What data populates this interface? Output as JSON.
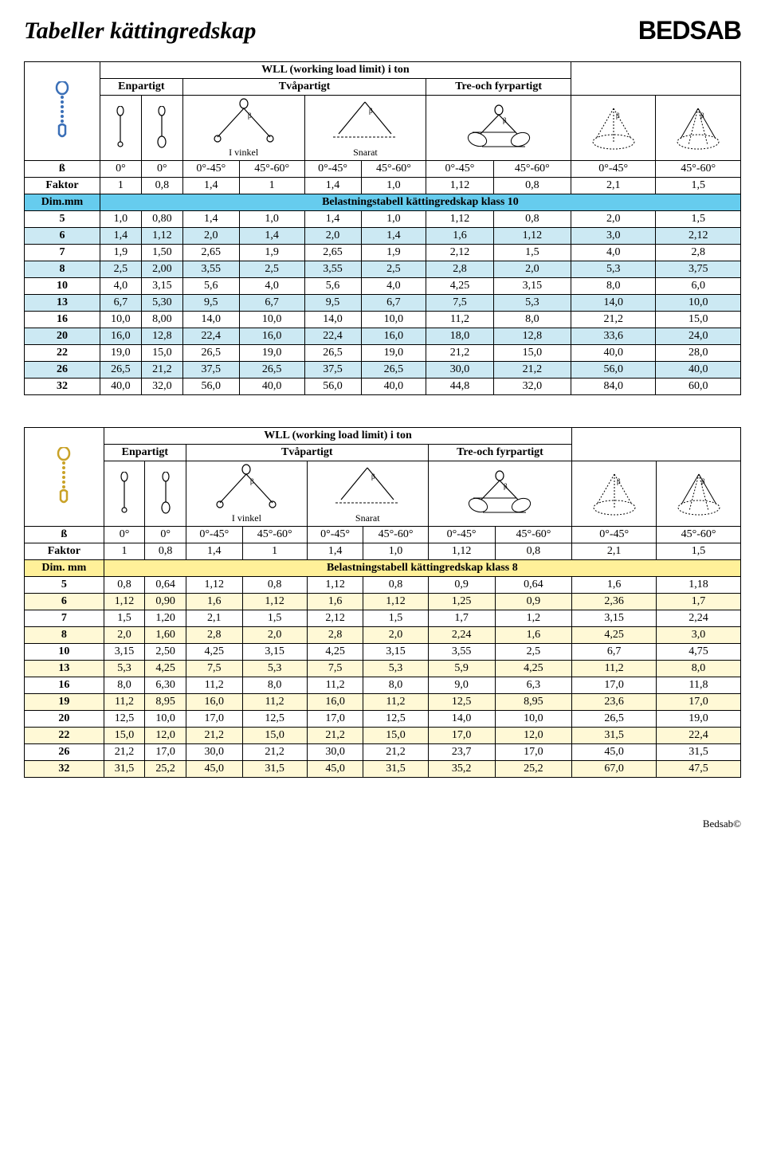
{
  "page": {
    "title": "Tabeller kättingredskap",
    "brand": "BEDSAB",
    "copyright": "Bedsab©"
  },
  "tables": [
    {
      "wll_title": "WLL (working load limit) i ton",
      "part_labels": [
        "Enpartigt",
        "Tvåpartigt",
        "Tre-och fyrpartigt"
      ],
      "ivinkel": "I vinkel",
      "snarat": "Snarat",
      "beta_label": "ß",
      "faktor_label": "Faktor",
      "dim_label": "Dim.mm",
      "belast_label": "Belastningstabell kättingredskap klass 10",
      "angles": [
        "0°",
        "0°",
        "0°-45°",
        "45°-60°",
        "0°-45°",
        "45°-60°",
        "0°-45°",
        "45°-60°",
        "0°-45°",
        "45°-60°"
      ],
      "faktor": [
        "1",
        "0,8",
        "1,4",
        "1",
        "1,4",
        "1,0",
        "1,12",
        "0,8",
        "2,1",
        "1,5"
      ],
      "icon_colors": {
        "chain": "#3a6fb7",
        "link": "#3a6fb7"
      },
      "dim_row_bg": "#66ccee",
      "alt_row_bg": "#cce9f3",
      "rows": [
        {
          "d": "5",
          "v": [
            "1,0",
            "0,80",
            "1,4",
            "1,0",
            "1,4",
            "1,0",
            "1,12",
            "0,8",
            "2,0",
            "1,5"
          ]
        },
        {
          "d": "6",
          "v": [
            "1,4",
            "1,12",
            "2,0",
            "1,4",
            "2,0",
            "1,4",
            "1,6",
            "1,12",
            "3,0",
            "2,12"
          ]
        },
        {
          "d": "7",
          "v": [
            "1,9",
            "1,50",
            "2,65",
            "1,9",
            "2,65",
            "1,9",
            "2,12",
            "1,5",
            "4,0",
            "2,8"
          ]
        },
        {
          "d": "8",
          "v": [
            "2,5",
            "2,00",
            "3,55",
            "2,5",
            "3,55",
            "2,5",
            "2,8",
            "2,0",
            "5,3",
            "3,75"
          ]
        },
        {
          "d": "10",
          "v": [
            "4,0",
            "3,15",
            "5,6",
            "4,0",
            "5,6",
            "4,0",
            "4,25",
            "3,15",
            "8,0",
            "6,0"
          ]
        },
        {
          "d": "13",
          "v": [
            "6,7",
            "5,30",
            "9,5",
            "6,7",
            "9,5",
            "6,7",
            "7,5",
            "5,3",
            "14,0",
            "10,0"
          ]
        },
        {
          "d": "16",
          "v": [
            "10,0",
            "8,00",
            "14,0",
            "10,0",
            "14,0",
            "10,0",
            "11,2",
            "8,0",
            "21,2",
            "15,0"
          ]
        },
        {
          "d": "20",
          "v": [
            "16,0",
            "12,8",
            "22,4",
            "16,0",
            "22,4",
            "16,0",
            "18,0",
            "12,8",
            "33,6",
            "24,0"
          ]
        },
        {
          "d": "22",
          "v": [
            "19,0",
            "15,0",
            "26,5",
            "19,0",
            "26,5",
            "19,0",
            "21,2",
            "15,0",
            "40,0",
            "28,0"
          ]
        },
        {
          "d": "26",
          "v": [
            "26,5",
            "21,2",
            "37,5",
            "26,5",
            "37,5",
            "26,5",
            "30,0",
            "21,2",
            "56,0",
            "40,0"
          ]
        },
        {
          "d": "32",
          "v": [
            "40,0",
            "32,0",
            "56,0",
            "40,0",
            "56,0",
            "40,0",
            "44,8",
            "32,0",
            "84,0",
            "60,0"
          ]
        }
      ]
    },
    {
      "wll_title": "WLL (working load limit) i ton",
      "part_labels": [
        "Enpartigt",
        "Tvåpartigt",
        "Tre-och fyrpartigt"
      ],
      "ivinkel": "I vinkel",
      "snarat": "Snarat",
      "beta_label": "ß",
      "faktor_label": "Faktor",
      "dim_label": "Dim. mm",
      "belast_label": "Belastningstabell kättingredskap klass 8",
      "angles": [
        "0°",
        "0°",
        "0°-45°",
        "45°-60°",
        "0°-45°",
        "45°-60°",
        "0°-45°",
        "45°-60°",
        "0°-45°",
        "45°-60°"
      ],
      "faktor": [
        "1",
        "0,8",
        "1,4",
        "1",
        "1,4",
        "1,0",
        "1,12",
        "0,8",
        "2,1",
        "1,5"
      ],
      "icon_colors": {
        "chain": "#c9a227",
        "link": "#c9a227"
      },
      "dim_row_bg": "#fff099",
      "alt_row_bg": "#fff9d6",
      "rows": [
        {
          "d": "5",
          "v": [
            "0,8",
            "0,64",
            "1,12",
            "0,8",
            "1,12",
            "0,8",
            "0,9",
            "0,64",
            "1,6",
            "1,18"
          ]
        },
        {
          "d": "6",
          "v": [
            "1,12",
            "0,90",
            "1,6",
            "1,12",
            "1,6",
            "1,12",
            "1,25",
            "0,9",
            "2,36",
            "1,7"
          ]
        },
        {
          "d": "7",
          "v": [
            "1,5",
            "1,20",
            "2,1",
            "1,5",
            "2,12",
            "1,5",
            "1,7",
            "1,2",
            "3,15",
            "2,24"
          ]
        },
        {
          "d": "8",
          "v": [
            "2,0",
            "1,60",
            "2,8",
            "2,0",
            "2,8",
            "2,0",
            "2,24",
            "1,6",
            "4,25",
            "3,0"
          ]
        },
        {
          "d": "10",
          "v": [
            "3,15",
            "2,50",
            "4,25",
            "3,15",
            "4,25",
            "3,15",
            "3,55",
            "2,5",
            "6,7",
            "4,75"
          ]
        },
        {
          "d": "13",
          "v": [
            "5,3",
            "4,25",
            "7,5",
            "5,3",
            "7,5",
            "5,3",
            "5,9",
            "4,25",
            "11,2",
            "8,0"
          ]
        },
        {
          "d": "16",
          "v": [
            "8,0",
            "6,30",
            "11,2",
            "8,0",
            "11,2",
            "8,0",
            "9,0",
            "6,3",
            "17,0",
            "11,8"
          ]
        },
        {
          "d": "19",
          "v": [
            "11,2",
            "8,95",
            "16,0",
            "11,2",
            "16,0",
            "11,2",
            "12,5",
            "8,95",
            "23,6",
            "17,0"
          ]
        },
        {
          "d": "20",
          "v": [
            "12,5",
            "10,0",
            "17,0",
            "12,5",
            "17,0",
            "12,5",
            "14,0",
            "10,0",
            "26,5",
            "19,0"
          ]
        },
        {
          "d": "22",
          "v": [
            "15,0",
            "12,0",
            "21,2",
            "15,0",
            "21,2",
            "15,0",
            "17,0",
            "12,0",
            "31,5",
            "22,4"
          ]
        },
        {
          "d": "26",
          "v": [
            "21,2",
            "17,0",
            "30,0",
            "21,2",
            "30,0",
            "21,2",
            "23,7",
            "17,0",
            "45,0",
            "31,5"
          ]
        },
        {
          "d": "32",
          "v": [
            "31,5",
            "25,2",
            "45,0",
            "31,5",
            "45,0",
            "31,5",
            "35,2",
            "25,2",
            "67,0",
            "47,5"
          ]
        }
      ]
    }
  ]
}
